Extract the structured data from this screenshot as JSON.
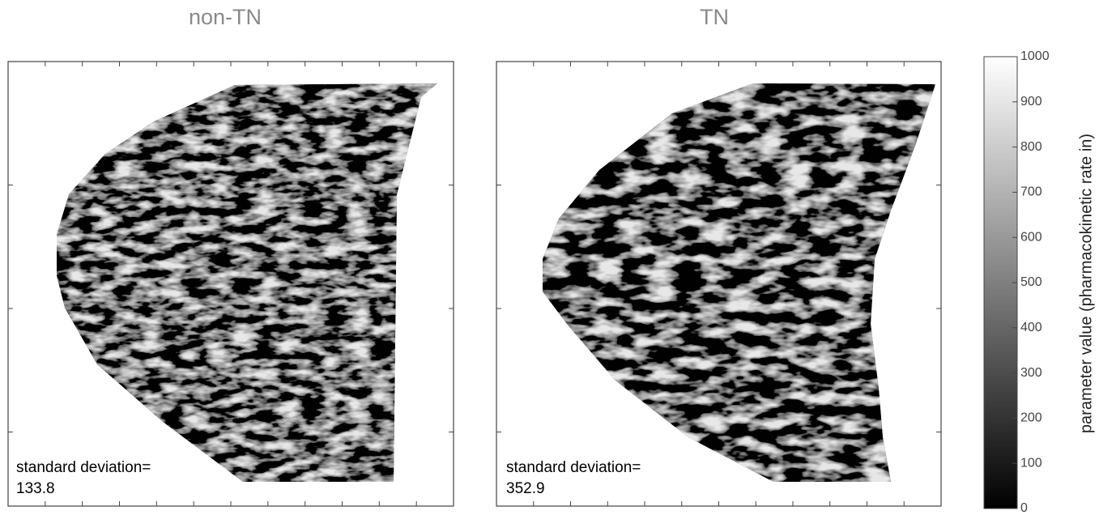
{
  "panels": [
    {
      "title": "non-TN",
      "annotation": "standard deviation=",
      "value": "133.8"
    },
    {
      "title": "TN",
      "annotation": "standard deviation=",
      "value": "352.9"
    }
  ],
  "colorbar": {
    "label": "parameter value (pharmacokinetic rate in)",
    "lim": [
      0,
      1000
    ],
    "ticks": [
      0,
      100,
      200,
      300,
      400,
      500,
      600,
      700,
      800,
      900,
      1000
    ]
  }
}
